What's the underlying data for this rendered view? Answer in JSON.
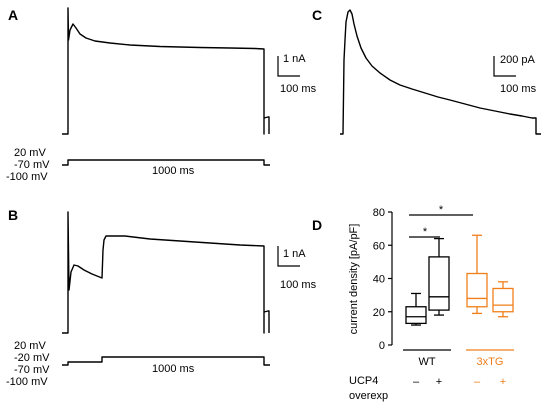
{
  "panels": {
    "A": {
      "label": "A",
      "scale_current": "1 nA",
      "scale_time": "100 ms",
      "protocol": {
        "levels": [
          "20 mV",
          "-70 mV",
          "-100 mV"
        ],
        "duration": "1000 ms"
      }
    },
    "B": {
      "label": "B",
      "scale_current": "1 nA",
      "scale_time": "100 ms",
      "protocol": {
        "levels": [
          "20 mV",
          "-20 mV",
          "-70 mV",
          "-100 mV"
        ],
        "duration": "1000 ms"
      }
    },
    "C": {
      "label": "C",
      "scale_current": "200 pA",
      "scale_time": "100 ms"
    },
    "D": {
      "label": "D"
    }
  },
  "colors": {
    "wt": "#000000",
    "tg": "#f07f1a"
  },
  "chart_data": {
    "type": "box",
    "ylabel": "current density [pA/pF]",
    "ylim": [
      0,
      80
    ],
    "yticks": [
      0,
      20,
      40,
      60,
      80
    ],
    "groups": [
      {
        "name": "WT",
        "color": "#000000"
      },
      {
        "name": "3xTG",
        "color": "#f07f1a"
      }
    ],
    "row_label": [
      "UCP4",
      "overexp"
    ],
    "boxes": [
      {
        "group": "WT",
        "overexp": "–",
        "min": 12,
        "q1": 13,
        "median": 17,
        "q3": 23,
        "max": 31
      },
      {
        "group": "WT",
        "overexp": "+",
        "min": 18,
        "q1": 21,
        "median": 29,
        "q3": 53,
        "max": 64
      },
      {
        "group": "3xTG",
        "overexp": "–",
        "min": 19,
        "q1": 23,
        "median": 28,
        "q3": 43,
        "max": 66
      },
      {
        "group": "3xTG",
        "overexp": "+",
        "min": 17,
        "q1": 20,
        "median": 24,
        "q3": 34,
        "max": 38
      }
    ],
    "significance": [
      "*",
      "*"
    ]
  }
}
